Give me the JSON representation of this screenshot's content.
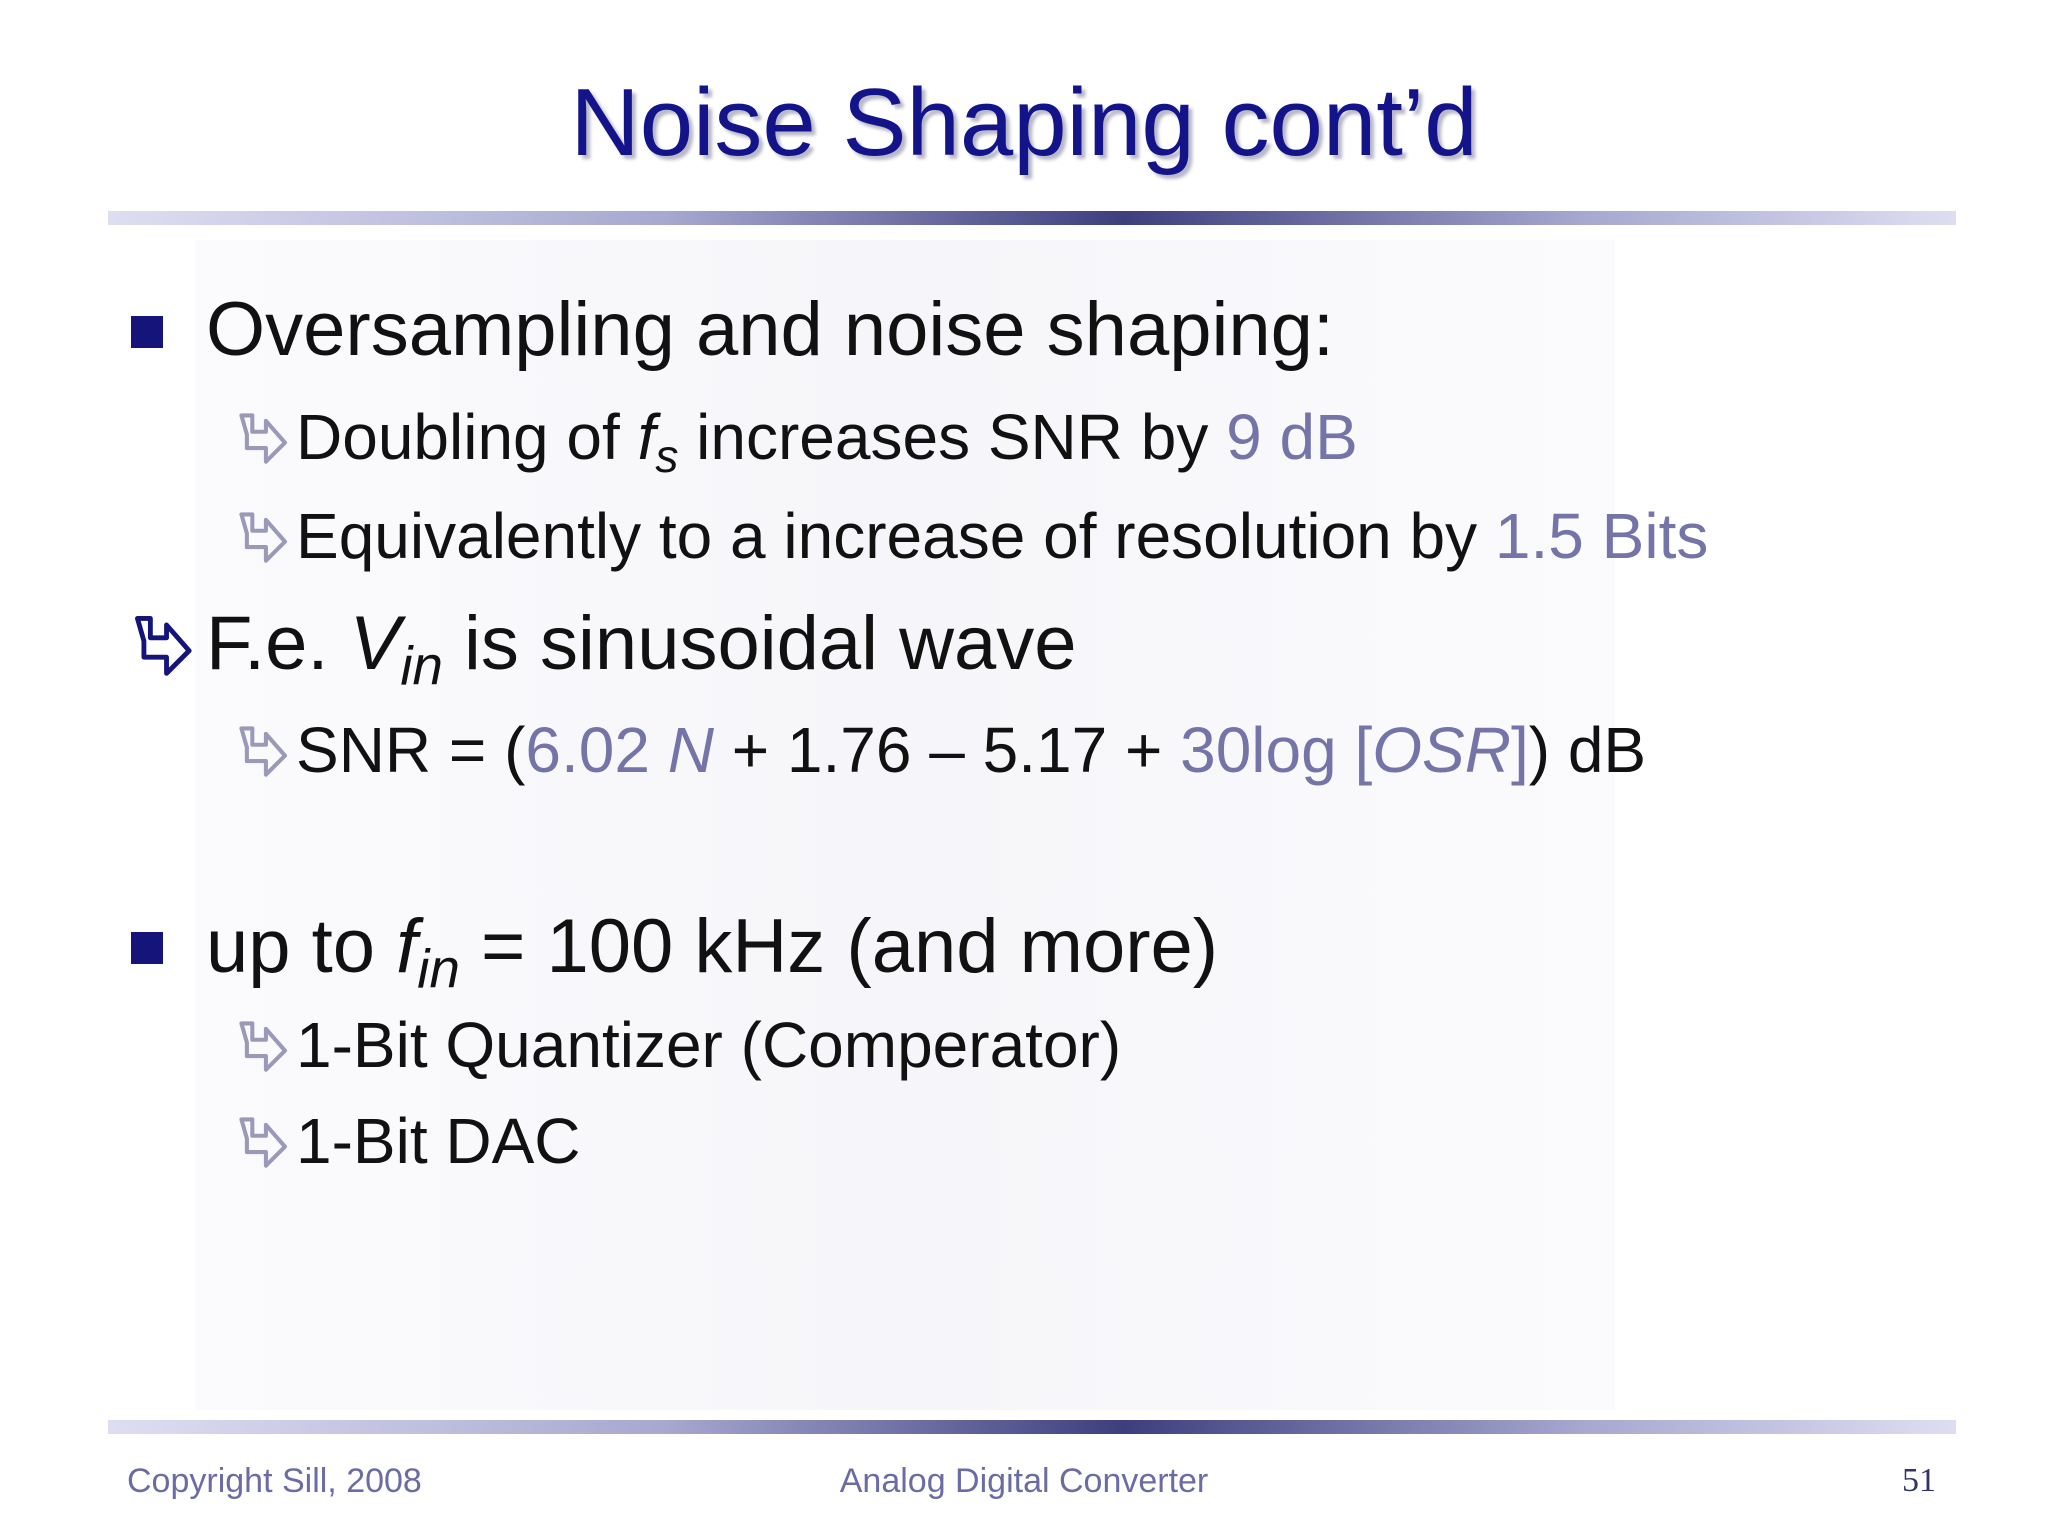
{
  "header": {
    "title": "Noise Shaping cont’d"
  },
  "items": [
    {
      "runs": [
        "Oversampling and noise shaping:"
      ]
    },
    {
      "runs": [
        "Doubling of ",
        "f",
        "s",
        " increases SNR by ",
        "9 dB"
      ]
    },
    {
      "runs": [
        "Equivalently to a increase of resolution by ",
        "1.5 Bits"
      ]
    },
    {
      "runs": [
        "F.e. ",
        "V",
        "in",
        " is sinusoidal wave"
      ]
    },
    {
      "runs": [
        "SNR = (",
        "6.02 ",
        "N",
        " + 1.76 – 5.17 + ",
        "30log [",
        "OSR",
        "]",
        ") dB"
      ]
    },
    {
      "runs": [
        "up to ",
        "f",
        "in",
        " = 100 kHz (and more)"
      ]
    },
    {
      "runs": [
        "1-Bit Quantizer (Comperator)"
      ]
    },
    {
      "runs": [
        "1-Bit DAC"
      ]
    }
  ],
  "footer": {
    "left": "Copyright Sill, 2008",
    "center": "Analog Digital Converter",
    "page": "51"
  }
}
